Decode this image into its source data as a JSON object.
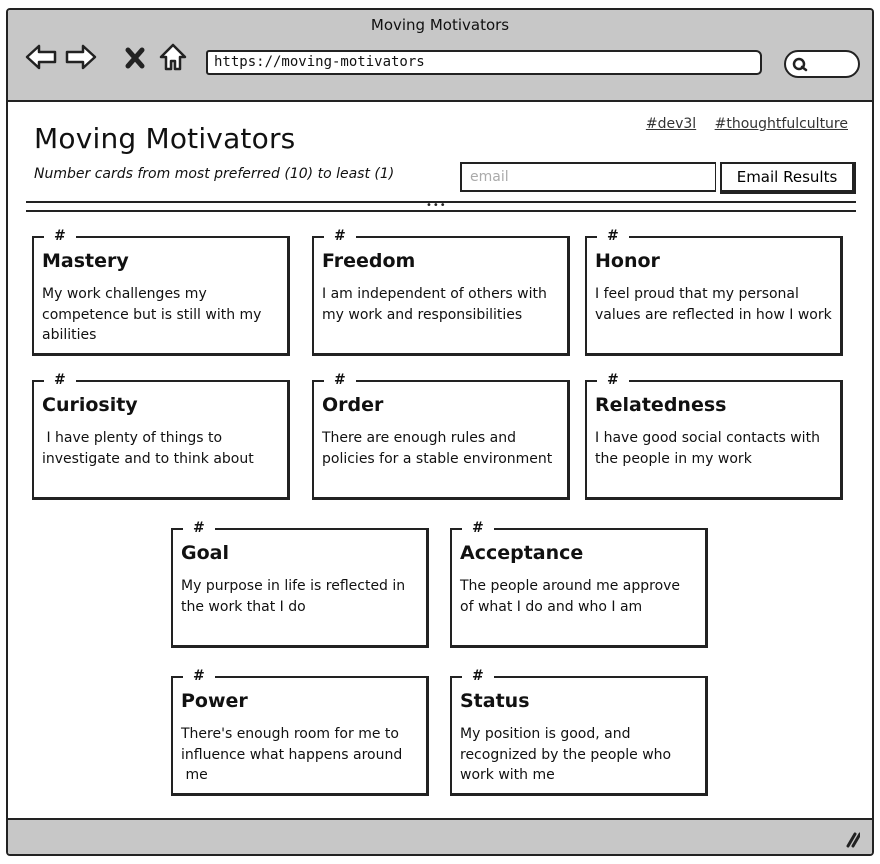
{
  "window": {
    "title": "Moving Motivators"
  },
  "browser": {
    "url": "https://moving-motivators",
    "back_icon": "back-arrow-icon",
    "forward_icon": "forward-arrow-icon",
    "stop_icon": "close-icon",
    "home_icon": "home-icon",
    "search_icon": "search-icon"
  },
  "header": {
    "title": "Moving Motivators",
    "subtitle": "Number cards from most preferred (10) to least (1)",
    "tags": [
      "#dev3l",
      "#thoughtfulculture"
    ],
    "email_placeholder": "email",
    "email_value": "",
    "email_button": "Email Results"
  },
  "cards": [
    {
      "number": "#",
      "title": "Mastery",
      "description": "My work challenges my competence but is still with my abilities"
    },
    {
      "number": "#",
      "title": "Freedom",
      "description": "I am independent of others with my work and responsibilities"
    },
    {
      "number": "#",
      "title": "Honor",
      "description": "I feel proud that my personal values are reflected in how I work"
    },
    {
      "number": "#",
      "title": "Curiosity",
      "description": " I have plenty of things to investigate and to think about"
    },
    {
      "number": "#",
      "title": "Order",
      "description": "There are enough rules and policies for a stable environment"
    },
    {
      "number": "#",
      "title": "Relatedness",
      "description": "I have good social contacts with the people in my work"
    },
    {
      "number": "#",
      "title": "Goal",
      "description": "My purpose in life is reflected in the work that I do"
    },
    {
      "number": "#",
      "title": "Acceptance",
      "description": "The people around me approve of what I do and who I am"
    },
    {
      "number": "#",
      "title": "Power",
      "description": "There's enough room for me to influence what happens around\n me"
    },
    {
      "number": "#",
      "title": "Status",
      "description": "My position is good, and recognized by the people who work with me"
    }
  ],
  "colors": {
    "chrome": "#c7c7c7",
    "ink": "#222222",
    "placeholder": "#aaaaaa"
  }
}
